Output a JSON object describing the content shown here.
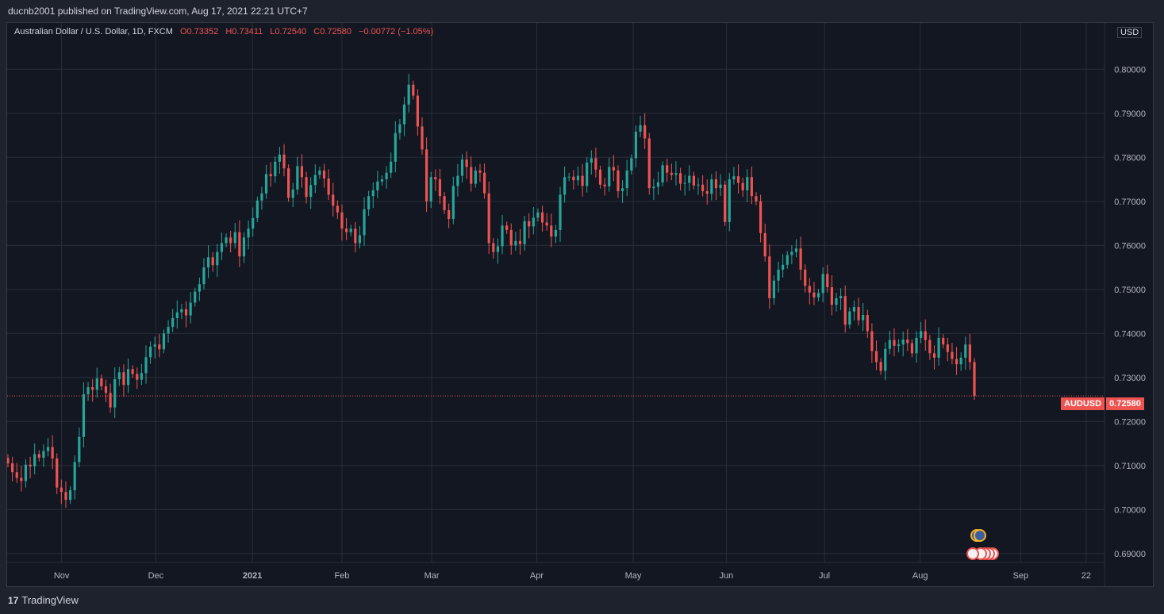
{
  "header": {
    "publish_line": "ducnb2001 published on TradingView.com, Aug 17, 2021 22:21 UTC+7"
  },
  "legend": {
    "symbol_line": "Australian Dollar / U.S. Dollar, 1D, FXCM",
    "open": "O0.73352",
    "high": "H0.73411",
    "low": "L0.72540",
    "close": "C0.72580",
    "change": "−0.00772 (−1.05%)"
  },
  "currency_button": "USD",
  "price_tag": {
    "symbol": "AUDUSD",
    "value": "0.72580"
  },
  "footer": {
    "brand": "TradingView"
  },
  "colors": {
    "up": "#26a69a",
    "down": "#ef5350",
    "background": "#131722",
    "grid": "#2a2e39",
    "text": "#b2b5be"
  },
  "event_icons": [
    "australia-flag-icon",
    "us-flag-icon"
  ],
  "chart_data": {
    "type": "candlestick",
    "title": "Australian Dollar / U.S. Dollar, 1D, FXCM",
    "ylim": [
      0.688,
      0.8105
    ],
    "y_ticks": [
      "0.80000",
      "0.79000",
      "0.78000",
      "0.77000",
      "0.76000",
      "0.75000",
      "0.74000",
      "0.73000",
      "0.72000",
      "0.71000",
      "0.70000",
      "0.69000"
    ],
    "x_ticks": [
      "Nov",
      "Dec",
      "2021",
      "Feb",
      "Mar",
      "Apr",
      "May",
      "Jun",
      "Jul",
      "Aug",
      "Sep",
      "22"
    ],
    "last_price": 0.7258,
    "grid": true,
    "series": [
      {
        "name": "AUDUSD",
        "closes": [
          0.7105,
          0.7085,
          0.7072,
          0.7065,
          0.7102,
          0.7098,
          0.7126,
          0.7118,
          0.7133,
          0.7142,
          0.7116,
          0.705,
          0.704,
          0.7022,
          0.7044,
          0.7108,
          0.7165,
          0.7262,
          0.7278,
          0.7272,
          0.7298,
          0.728,
          0.7265,
          0.7232,
          0.7296,
          0.7312,
          0.7283,
          0.7319,
          0.7308,
          0.7295,
          0.731,
          0.7346,
          0.737,
          0.7375,
          0.7364,
          0.74,
          0.7415,
          0.7435,
          0.7448,
          0.7455,
          0.7441,
          0.747,
          0.7495,
          0.7512,
          0.755,
          0.7573,
          0.7555,
          0.7585,
          0.7605,
          0.7618,
          0.7605,
          0.763,
          0.7575,
          0.7618,
          0.7638,
          0.7662,
          0.7702,
          0.7718,
          0.7762,
          0.7757,
          0.779,
          0.7806,
          0.7775,
          0.7708,
          0.7727,
          0.778,
          0.7755,
          0.771,
          0.7737,
          0.776,
          0.777,
          0.7752,
          0.7715,
          0.769,
          0.7675,
          0.7638,
          0.763,
          0.7638,
          0.7605,
          0.7623,
          0.7682,
          0.7712,
          0.7725,
          0.7745,
          0.775,
          0.7765,
          0.779,
          0.7855,
          0.7875,
          0.792,
          0.7965,
          0.794,
          0.787,
          0.7818,
          0.77,
          0.7755,
          0.775,
          0.7712,
          0.768,
          0.766,
          0.7735,
          0.7758,
          0.7795,
          0.7778,
          0.774,
          0.777,
          0.7765,
          0.7718,
          0.7605,
          0.7585,
          0.7598,
          0.7645,
          0.7635,
          0.76,
          0.761,
          0.7603,
          0.7655,
          0.7643,
          0.7663,
          0.7675,
          0.7652,
          0.7645,
          0.762,
          0.7635,
          0.7715,
          0.7755,
          0.7756,
          0.7748,
          0.7758,
          0.7735,
          0.7788,
          0.7798,
          0.7772,
          0.7738,
          0.7734,
          0.7778,
          0.777,
          0.7723,
          0.773,
          0.777,
          0.7798,
          0.7858,
          0.7873,
          0.7843,
          0.773,
          0.7733,
          0.7743,
          0.7782,
          0.7765,
          0.776,
          0.7764,
          0.774,
          0.7742,
          0.7758,
          0.7736,
          0.7738,
          0.7723,
          0.7717,
          0.775,
          0.773,
          0.7738,
          0.7653,
          0.775,
          0.7757,
          0.7742,
          0.7725,
          0.7755,
          0.7712,
          0.77,
          0.7628,
          0.7575,
          0.748,
          0.752,
          0.7545,
          0.7556,
          0.7578,
          0.7585,
          0.7593,
          0.7545,
          0.7508,
          0.7493,
          0.7482,
          0.7492,
          0.7535,
          0.7505,
          0.7465,
          0.748,
          0.7485,
          0.742,
          0.745,
          0.746,
          0.743,
          0.7442,
          0.7405,
          0.736,
          0.7335,
          0.7315,
          0.7365,
          0.7385,
          0.7372,
          0.7375,
          0.7386,
          0.7378,
          0.7355,
          0.739,
          0.7405,
          0.7385,
          0.7355,
          0.7345,
          0.739,
          0.7375,
          0.7358,
          0.7342,
          0.733,
          0.7345,
          0.7375,
          0.7335,
          0.7258
        ]
      }
    ]
  }
}
